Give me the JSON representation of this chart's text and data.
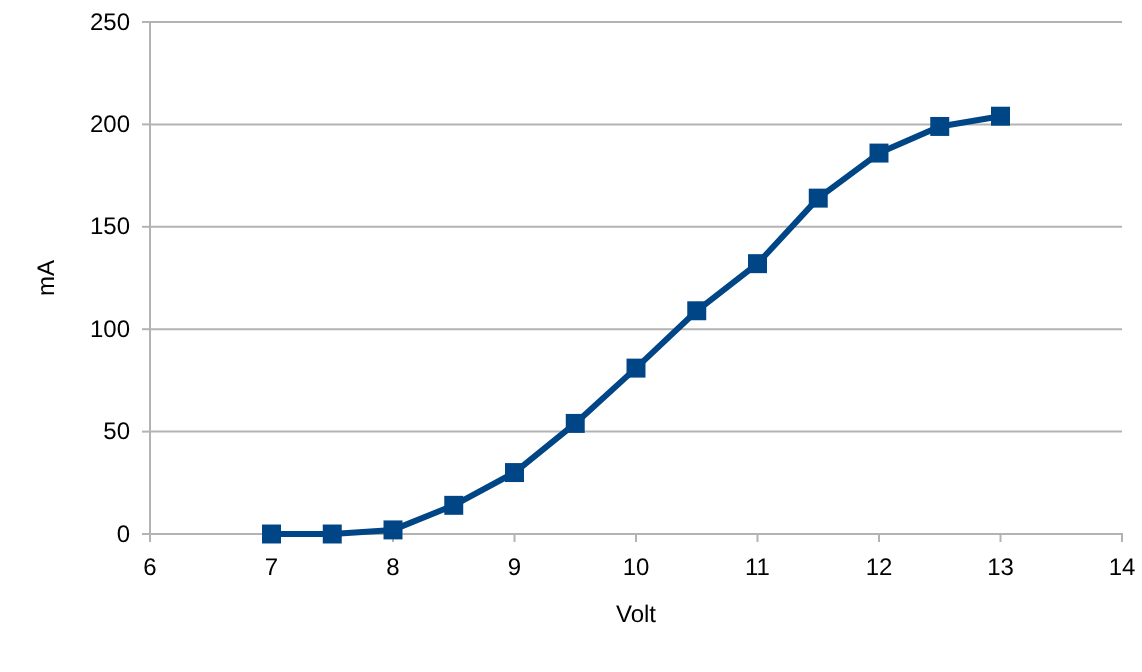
{
  "chart_data": {
    "type": "line",
    "xlabel": "Volt",
    "ylabel": "mA",
    "x": [
      7,
      7.5,
      8,
      8.5,
      9,
      9.5,
      10,
      10.5,
      11,
      11.5,
      12,
      12.5,
      13
    ],
    "series": [
      {
        "color": "#004586",
        "values": [
          0,
          0,
          2,
          14,
          30,
          54,
          81,
          109,
          132,
          164,
          186,
          199,
          204
        ]
      }
    ],
    "xlim": [
      6,
      14
    ],
    "xticks": [
      6,
      7,
      8,
      9,
      10,
      11,
      12,
      13,
      14
    ],
    "ylim": [
      0,
      250
    ],
    "yticks": [
      0,
      50,
      100,
      150,
      200,
      250
    ],
    "grid": "y",
    "marker": "square",
    "line_style": "solid"
  }
}
